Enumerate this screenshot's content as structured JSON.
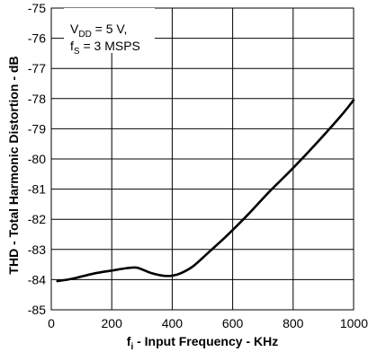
{
  "chart_data": {
    "type": "line",
    "title": "",
    "xlabel_main": "f",
    "xlabel_sub": "i",
    "xlabel_rest": " - Input Frequency - KHz",
    "ylabel": "THD - Total Harmonic Distortion - dB",
    "xlim": [
      0,
      1000
    ],
    "ylim": [
      -85,
      -75
    ],
    "grid": true,
    "x_ticks": [
      "0",
      "200",
      "400",
      "600",
      "800",
      "1000"
    ],
    "y_ticks": [
      "-75",
      "-76",
      "-77",
      "-78",
      "-79",
      "-80",
      "-81",
      "-82",
      "-83",
      "-84",
      "-85"
    ],
    "annotation": {
      "line1_main": "V",
      "line1_sub": "DD",
      "line1_rest": " = 5 V,",
      "line2_main": "f",
      "line2_sub": "S",
      "line2_rest": " = 3 MSPS"
    },
    "series": [
      {
        "x": [
          20,
          70,
          140,
          200,
          250,
          280,
          300,
          330,
          370,
          400,
          430,
          470,
          520,
          580,
          650,
          720,
          800,
          880,
          960,
          1000
        ],
        "y": [
          -84.05,
          -83.97,
          -83.8,
          -83.7,
          -83.62,
          -83.6,
          -83.66,
          -83.78,
          -83.87,
          -83.87,
          -83.78,
          -83.55,
          -83.1,
          -82.55,
          -81.85,
          -81.1,
          -80.3,
          -79.45,
          -78.55,
          -78.05
        ]
      }
    ]
  }
}
